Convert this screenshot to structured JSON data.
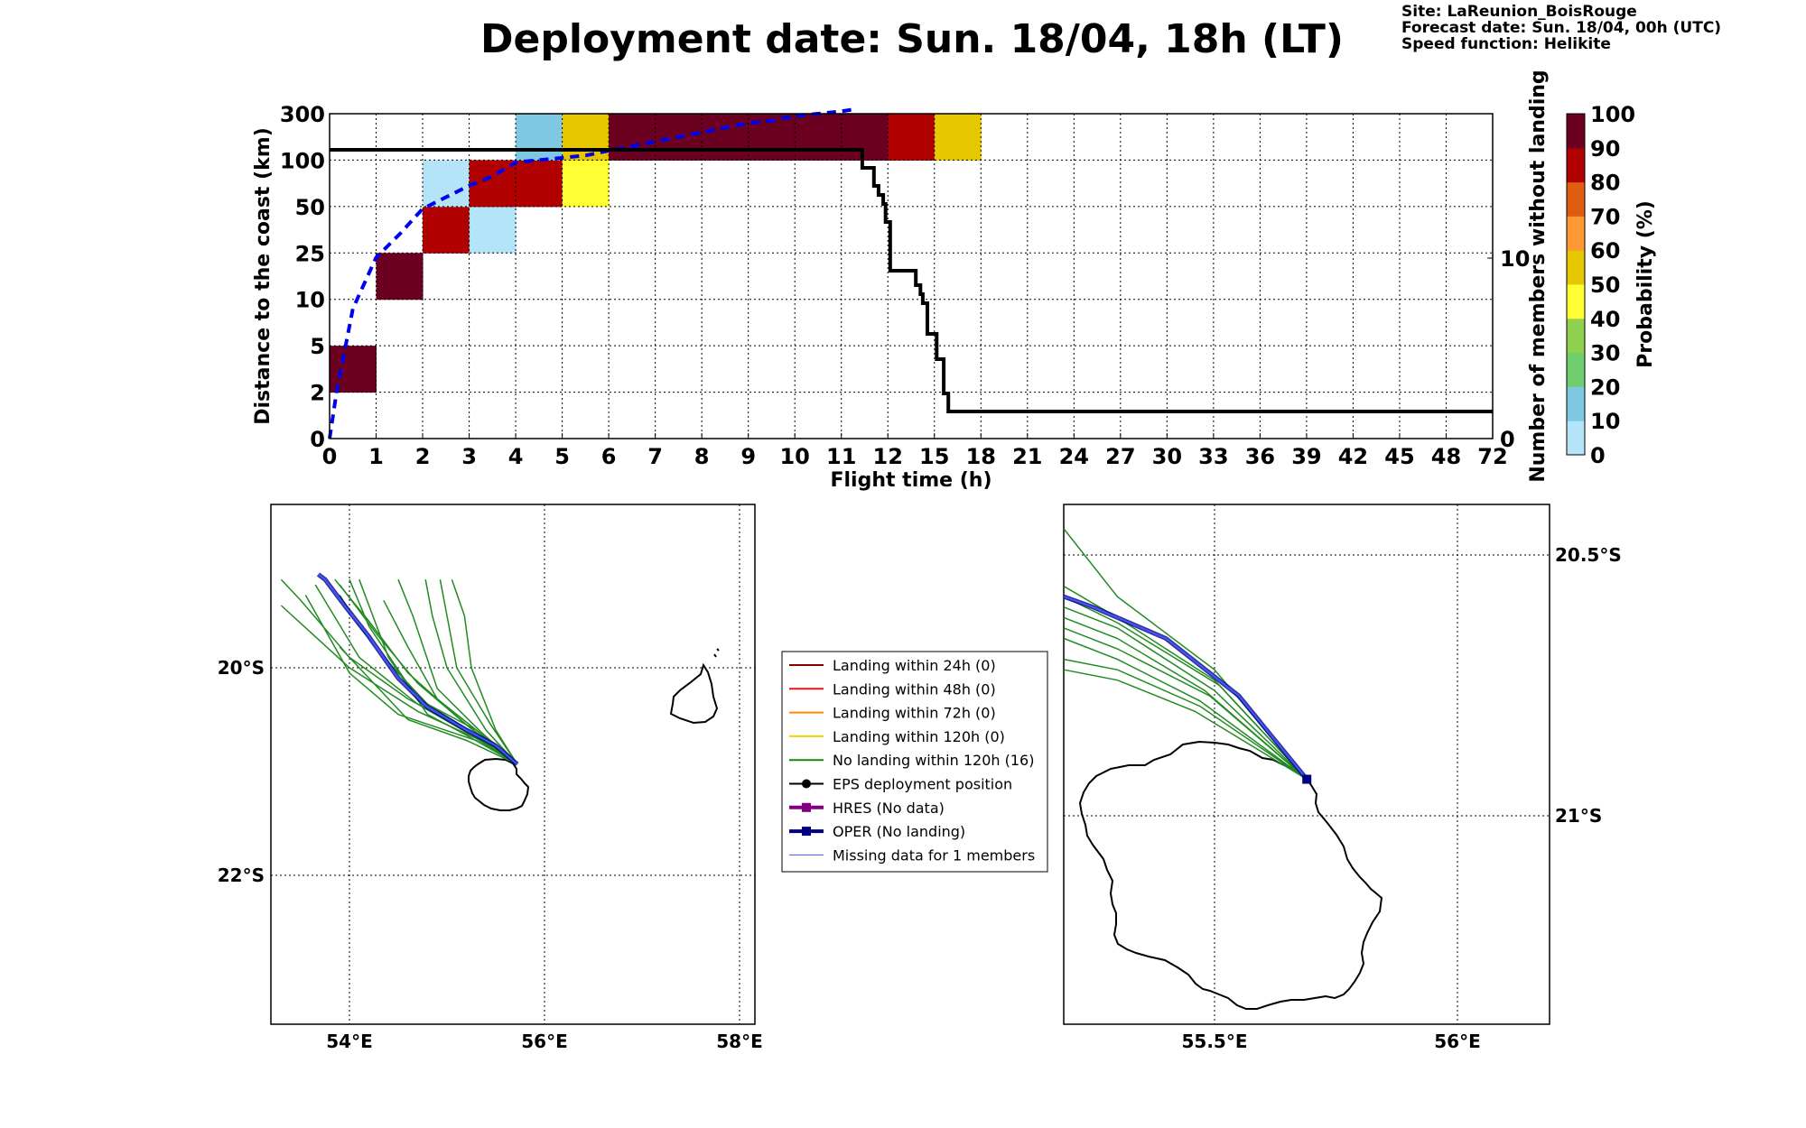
{
  "title": "Deployment date: Sun. 18/04, 18h (LT)",
  "info": {
    "site": "Site: LaReunion_BoisRouge",
    "forecast": "Forecast date: Sun. 18/04, 00h (UTC)",
    "speed": "Speed function: Helikite"
  },
  "chart_data": [
    {
      "type": "heatmap",
      "xlabel": "Flight time (h)",
      "ylabel": "Distance to the coast (km)",
      "y2label": "Number of members without landing",
      "x_tick_labels": [
        "0",
        "1",
        "2",
        "3",
        "4",
        "5",
        "6",
        "7",
        "8",
        "9",
        "10",
        "11",
        "12",
        "15",
        "18",
        "21",
        "24",
        "27",
        "30",
        "33",
        "36",
        "39",
        "42",
        "45",
        "48",
        "72"
      ],
      "y_tick_labels": [
        "0",
        "2",
        "5",
        "10",
        "25",
        "50",
        "100",
        "300"
      ],
      "y2_tick_labels": [
        "0",
        "10"
      ],
      "y2lim": [
        0,
        18
      ],
      "grid": true,
      "colorbar": {
        "label": "Probability (%)",
        "tick_labels": [
          "0",
          "10",
          "20",
          "30",
          "40",
          "50",
          "60",
          "70",
          "80",
          "90",
          "100"
        ],
        "bins": [
          "#b3e4f7",
          "#7ec8e3",
          "#6fcf6f",
          "#8fd14f",
          "#ffff33",
          "#e6c800",
          "#ff9933",
          "#e05c10",
          "#b00000",
          "#6b0020"
        ]
      },
      "cells": [
        {
          "x_bin": 0,
          "y_bin": 1,
          "prob": 100
        },
        {
          "x_bin": 1,
          "y_bin": 3,
          "prob": 100
        },
        {
          "x_bin": 2,
          "y_bin": 4,
          "prob": 85
        },
        {
          "x_bin": 2,
          "y_bin": 5,
          "prob": 5
        },
        {
          "x_bin": 3,
          "y_bin": 4,
          "prob": 5
        },
        {
          "x_bin": 3,
          "y_bin": 5,
          "prob": 85
        },
        {
          "x_bin": 4,
          "y_bin": 5,
          "prob": 85
        },
        {
          "x_bin": 4,
          "y_bin": 6,
          "prob": 15
        },
        {
          "x_bin": 5,
          "y_bin": 5,
          "prob": 45
        },
        {
          "x_bin": 5,
          "y_bin": 6,
          "prob": 55
        },
        {
          "x_bin": 6,
          "y_bin": 6,
          "prob": 100
        },
        {
          "x_bin": 7,
          "y_bin": 6,
          "prob": 100
        },
        {
          "x_bin": 8,
          "y_bin": 6,
          "prob": 100
        },
        {
          "x_bin": 9,
          "y_bin": 6,
          "prob": 100
        },
        {
          "x_bin": 10,
          "y_bin": 6,
          "prob": 100
        },
        {
          "x_bin": 11,
          "y_bin": 6,
          "prob": 100
        },
        {
          "x_bin": 12,
          "y_bin": 6,
          "prob": 85
        },
        {
          "x_bin": 13,
          "y_bin": 6,
          "prob": 55
        }
      ],
      "series": [
        {
          "style": "dashed-blue",
          "x_bin_pos": [
            0,
            0.15,
            0.5,
            1,
            1.5,
            2,
            2.5,
            3,
            3.5,
            4,
            4.5,
            5,
            5.5,
            6,
            6.5,
            7,
            7.5,
            8,
            8.5,
            9,
            9.5,
            10,
            10.5,
            11,
            11.3
          ],
          "y_bin_pos": [
            0,
            1.0,
            2.8,
            3.9,
            4.4,
            4.95,
            5.2,
            5.45,
            5.65,
            5.95,
            6.0,
            6.05,
            6.1,
            6.2,
            6.3,
            6.4,
            6.5,
            6.6,
            6.7,
            6.8,
            6.85,
            6.95,
            7.0,
            7.05,
            7.1
          ]
        },
        {
          "style": "black-step",
          "x_bin_pos": [
            0,
            11.4,
            11.45,
            11.6,
            11.7,
            11.8,
            11.85,
            11.9,
            11.95,
            12.0,
            12.05,
            12.5,
            12.6,
            12.7,
            12.75,
            12.8,
            12.85,
            12.9,
            13.0,
            13.05,
            13.15,
            13.2,
            13.3,
            25.0
          ],
          "members": [
            16,
            16,
            15,
            15,
            14,
            13.5,
            13.5,
            13,
            12,
            12,
            9.3,
            9.3,
            8.5,
            8.0,
            7.5,
            7.5,
            5.8,
            5.8,
            5.8,
            4.4,
            4.4,
            2.5,
            1.5,
            1.5
          ]
        }
      ]
    },
    {
      "type": "map",
      "x_tick_labels": [
        "54°E",
        "56°E",
        "58°E"
      ],
      "y_tick_labels": [
        "20°S",
        "22°S"
      ],
      "launch": [
        55.72,
        -20.93
      ],
      "oper_track": [
        [
          55.72,
          -20.93
        ],
        [
          55.5,
          -20.75
        ],
        [
          55.2,
          -20.6
        ],
        [
          54.8,
          -20.38
        ],
        [
          54.5,
          -20.1
        ],
        [
          54.2,
          -19.7
        ],
        [
          53.95,
          -19.4
        ],
        [
          53.75,
          -19.15
        ],
        [
          53.68,
          -19.1
        ]
      ],
      "member_tracks": [
        [
          [
            55.72,
            -20.93
          ],
          [
            55.2,
            -20.55
          ],
          [
            54.7,
            -20.15
          ],
          [
            54.3,
            -19.7
          ],
          [
            53.9,
            -19.2
          ]
        ],
        [
          [
            55.72,
            -20.93
          ],
          [
            55.2,
            -20.6
          ],
          [
            54.6,
            -20.3
          ],
          [
            54.0,
            -19.9
          ],
          [
            53.5,
            -19.35
          ],
          [
            53.3,
            -19.15
          ]
        ],
        [
          [
            55.72,
            -20.93
          ],
          [
            55.3,
            -20.68
          ],
          [
            54.7,
            -20.42
          ],
          [
            54.0,
            -20.0
          ],
          [
            53.3,
            -19.4
          ]
        ],
        [
          [
            55.72,
            -20.93
          ],
          [
            55.35,
            -20.62
          ],
          [
            54.9,
            -20.2
          ],
          [
            54.65,
            -19.5
          ],
          [
            54.5,
            -19.15
          ]
        ],
        [
          [
            55.72,
            -20.93
          ],
          [
            55.4,
            -20.6
          ],
          [
            55.0,
            -20.0
          ],
          [
            54.85,
            -19.5
          ],
          [
            54.78,
            -19.15
          ]
        ],
        [
          [
            55.72,
            -20.93
          ],
          [
            55.45,
            -20.55
          ],
          [
            55.1,
            -20.0
          ],
          [
            55.02,
            -19.6
          ],
          [
            54.93,
            -19.15
          ]
        ],
        [
          [
            55.72,
            -20.93
          ],
          [
            55.5,
            -20.6
          ],
          [
            55.25,
            -20.0
          ],
          [
            55.18,
            -19.5
          ],
          [
            55.05,
            -19.15
          ]
        ],
        [
          [
            55.72,
            -20.93
          ],
          [
            55.3,
            -20.6
          ],
          [
            54.7,
            -20.3
          ],
          [
            54.2,
            -19.6
          ],
          [
            54.0,
            -19.15
          ]
        ],
        [
          [
            55.72,
            -20.93
          ],
          [
            55.2,
            -20.65
          ],
          [
            54.8,
            -20.45
          ],
          [
            54.4,
            -19.9
          ],
          [
            54.2,
            -19.4
          ],
          [
            54.1,
            -19.15
          ]
        ],
        [
          [
            55.72,
            -20.93
          ],
          [
            55.3,
            -20.7
          ],
          [
            54.5,
            -20.45
          ],
          [
            54.0,
            -20.05
          ],
          [
            53.55,
            -19.3
          ]
        ],
        [
          [
            55.72,
            -20.93
          ],
          [
            55.2,
            -20.55
          ],
          [
            54.6,
            -20.05
          ],
          [
            54.2,
            -19.55
          ],
          [
            53.85,
            -19.15
          ]
        ],
        [
          [
            55.72,
            -20.93
          ],
          [
            55.25,
            -20.65
          ],
          [
            54.7,
            -20.35
          ],
          [
            54.1,
            -19.9
          ],
          [
            53.65,
            -19.2
          ]
        ],
        [
          [
            55.72,
            -20.93
          ],
          [
            55.3,
            -20.6
          ],
          [
            54.9,
            -20.3
          ],
          [
            54.6,
            -19.8
          ],
          [
            54.35,
            -19.35
          ]
        ],
        [
          [
            55.72,
            -20.93
          ],
          [
            55.2,
            -20.7
          ],
          [
            54.6,
            -20.5
          ],
          [
            54.2,
            -20.1
          ],
          [
            53.9,
            -19.8
          ]
        ],
        [
          [
            55.72,
            -20.93
          ],
          [
            55.3,
            -20.65
          ],
          [
            54.8,
            -20.35
          ],
          [
            54.4,
            -19.95
          ],
          [
            54.1,
            -19.6
          ],
          [
            53.9,
            -19.3
          ]
        ]
      ]
    },
    {
      "type": "map",
      "x_tick_labels": [
        "55.5°E",
        "56°E"
      ],
      "y_tick_labels": [
        "20.5°S",
        "21°S"
      ],
      "launch": [
        55.69,
        -20.93
      ],
      "oper_track": [
        [
          55.69,
          -20.93
        ],
        [
          55.55,
          -20.77
        ],
        [
          55.4,
          -20.66
        ],
        [
          55.25,
          -20.6
        ],
        [
          55.19,
          -20.58
        ]
      ],
      "member_tracks": [
        [
          [
            55.69,
            -20.93
          ],
          [
            55.5,
            -20.72
          ],
          [
            55.3,
            -20.58
          ],
          [
            55.19,
            -20.45
          ]
        ],
        [
          [
            55.69,
            -20.93
          ],
          [
            55.5,
            -20.74
          ],
          [
            55.3,
            -20.62
          ],
          [
            55.19,
            -20.56
          ]
        ],
        [
          [
            55.69,
            -20.93
          ],
          [
            55.48,
            -20.76
          ],
          [
            55.3,
            -20.66
          ],
          [
            55.19,
            -20.62
          ]
        ],
        [
          [
            55.69,
            -20.93
          ],
          [
            55.47,
            -20.78
          ],
          [
            55.3,
            -20.7
          ],
          [
            55.19,
            -20.66
          ]
        ],
        [
          [
            55.69,
            -20.93
          ],
          [
            55.47,
            -20.79
          ],
          [
            55.3,
            -20.72
          ],
          [
            55.19,
            -20.7
          ]
        ],
        [
          [
            55.69,
            -20.93
          ],
          [
            55.49,
            -20.77
          ],
          [
            55.3,
            -20.68
          ],
          [
            55.19,
            -20.64
          ]
        ],
        [
          [
            55.69,
            -20.93
          ],
          [
            55.5,
            -20.76
          ],
          [
            55.3,
            -20.64
          ],
          [
            55.19,
            -20.6
          ]
        ],
        [
          [
            55.69,
            -20.93
          ],
          [
            55.51,
            -20.75
          ],
          [
            55.3,
            -20.63
          ],
          [
            55.19,
            -20.58
          ]
        ],
        [
          [
            55.69,
            -20.93
          ],
          [
            55.46,
            -20.8
          ],
          [
            55.3,
            -20.74
          ],
          [
            55.19,
            -20.72
          ]
        ]
      ]
    }
  ],
  "legend": {
    "items": [
      {
        "label": "Landing within 24h (0)",
        "color": "#8b0000",
        "marker": "none",
        "lw": 2
      },
      {
        "label": "Landing within 48h (0)",
        "color": "#ee1111",
        "marker": "none",
        "lw": 2
      },
      {
        "label": "Landing within 72h (0)",
        "color": "#ff8c00",
        "marker": "none",
        "lw": 2
      },
      {
        "label": "Landing within 120h (0)",
        "color": "#f5d000",
        "marker": "none",
        "lw": 2
      },
      {
        "label": "No landing within 120h (16)",
        "color": "#118811",
        "marker": "none",
        "lw": 2
      },
      {
        "label": "EPS deployment position",
        "color": "#000000",
        "marker": "circle",
        "lw": 2
      },
      {
        "label": "HRES (No data)",
        "color": "#800080",
        "marker": "square",
        "lw": 4
      },
      {
        "label": "OPER (No landing)",
        "color": "#000080",
        "marker": "square",
        "lw": 4
      },
      {
        "label": "Missing data for 1 members",
        "color": "#4455ff",
        "marker": "none",
        "lw": 1
      }
    ]
  }
}
